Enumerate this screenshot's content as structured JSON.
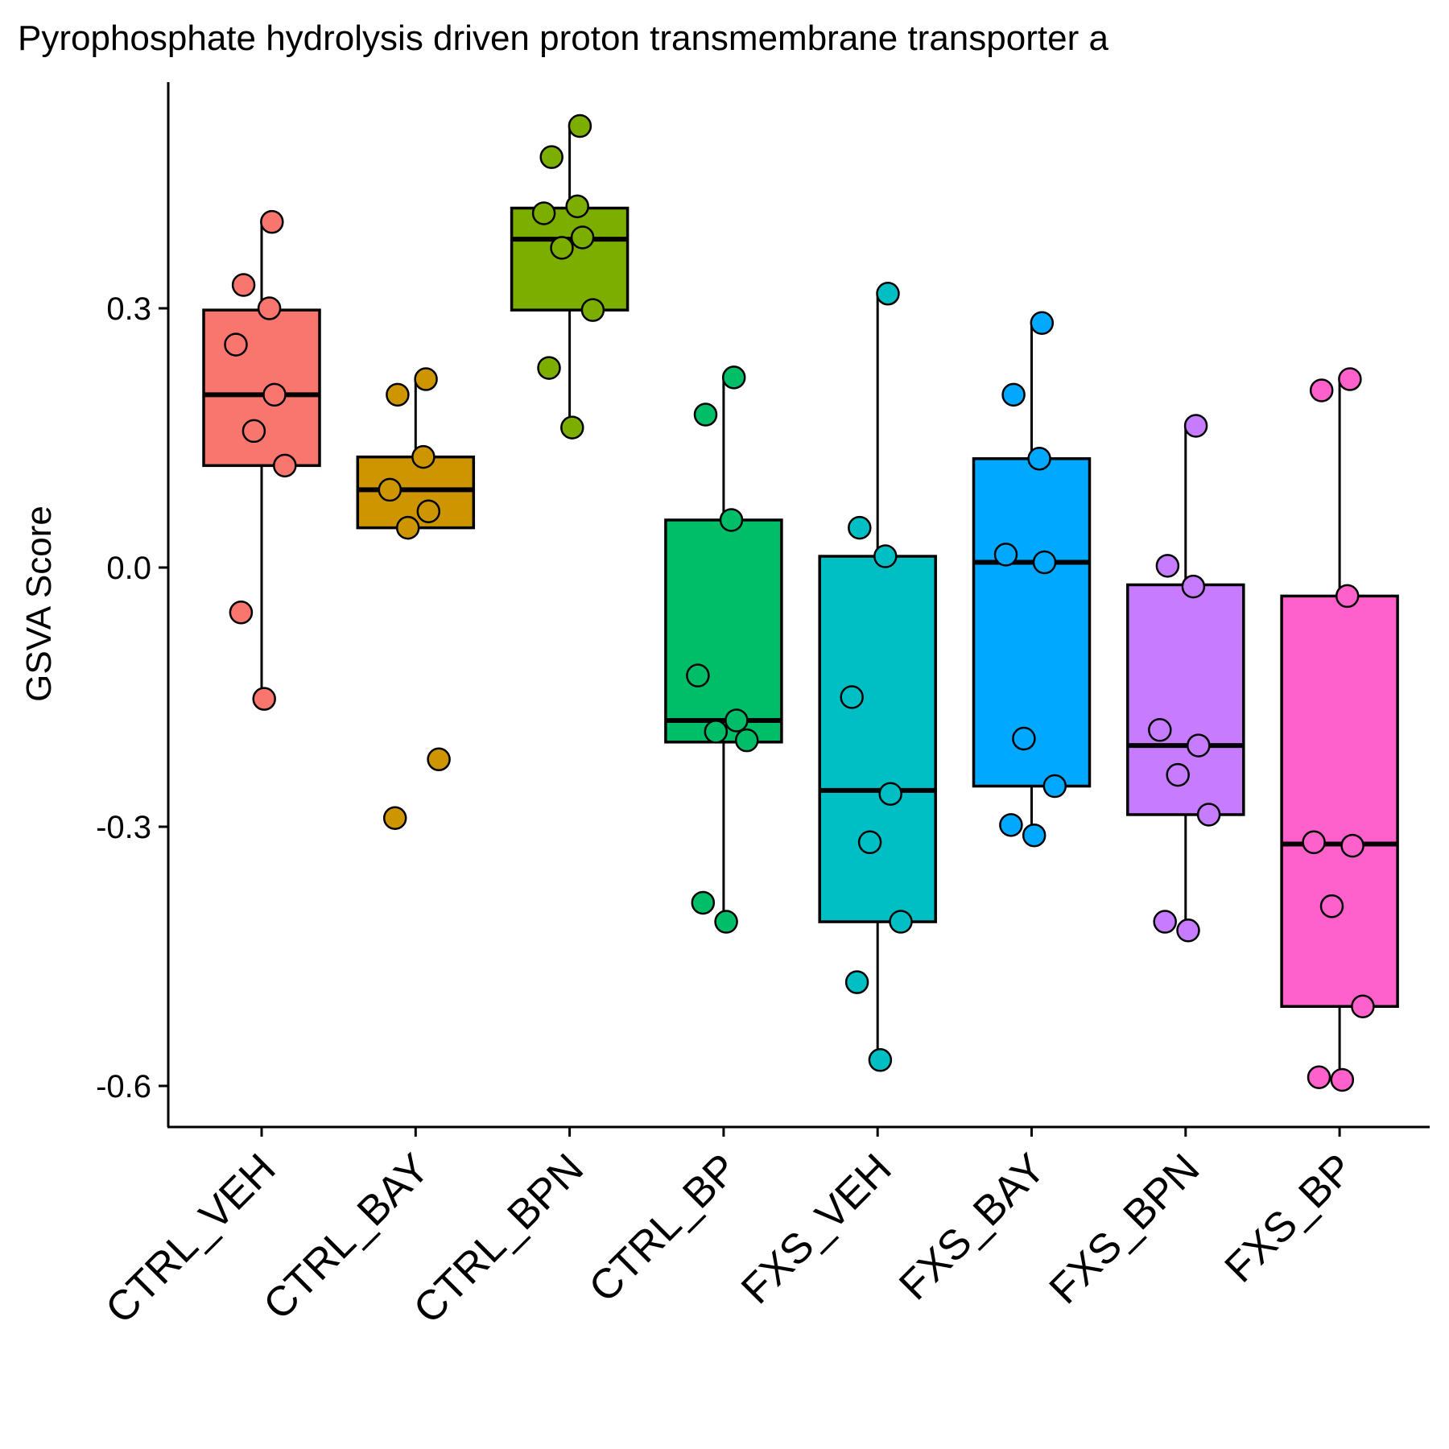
{
  "chart_data": {
    "type": "box",
    "title": "Pyrophosphate hydrolysis driven proton transmembrane transporter a",
    "xlabel": "",
    "ylabel": "GSVA Score",
    "ylim": [
      -0.65,
      0.56
    ],
    "yticks": [
      {
        "value": 0.3,
        "label": "0.3"
      },
      {
        "value": 0.0,
        "label": "0.0"
      },
      {
        "value": -0.3,
        "label": "-0.3"
      },
      {
        "value": -0.6,
        "label": "-0.6"
      }
    ],
    "grid": false,
    "legend": "none",
    "categories": [
      "CTRL_VEH",
      "CTRL_BAY",
      "CTRL_BPN",
      "CTRL_BP",
      "FXS_VEH",
      "FXS_BAY",
      "FXS_BPN",
      "FXS_BP"
    ],
    "colors": [
      "#F8766D",
      "#CD9600",
      "#7CAE00",
      "#00BE67",
      "#00BFC4",
      "#00A9FF",
      "#C77CFF",
      "#FF61CC"
    ],
    "boxes": [
      {
        "whisker_low": -0.152,
        "q1": 0.118,
        "median": 0.2,
        "q3": 0.298,
        "whisker_high": 0.4
      },
      {
        "whisker_low": 0.046,
        "q1": 0.046,
        "median": 0.09,
        "q3": 0.128,
        "whisker_high": 0.218
      },
      {
        "whisker_low": 0.162,
        "q1": 0.298,
        "median": 0.38,
        "q3": 0.416,
        "whisker_high": 0.511
      },
      {
        "whisker_low": -0.41,
        "q1": -0.202,
        "median": -0.177,
        "q3": 0.055,
        "whisker_high": 0.22
      },
      {
        "whisker_low": -0.57,
        "q1": -0.41,
        "median": -0.258,
        "q3": 0.013,
        "whisker_high": 0.317
      },
      {
        "whisker_low": -0.31,
        "q1": -0.253,
        "median": 0.006,
        "q3": 0.126,
        "whisker_high": 0.283
      },
      {
        "whisker_low": -0.42,
        "q1": -0.286,
        "median": -0.206,
        "q3": -0.02,
        "whisker_high": 0.164
      },
      {
        "whisker_low": -0.593,
        "q1": -0.508,
        "median": -0.32,
        "q3": -0.033,
        "whisker_high": 0.218
      }
    ],
    "points": [
      [
        0.4,
        0.327,
        0.3,
        0.258,
        0.2,
        0.158,
        0.118,
        -0.052,
        -0.152
      ],
      [
        0.218,
        0.2,
        0.128,
        0.09,
        0.065,
        0.046,
        -0.222,
        -0.29
      ],
      [
        0.511,
        0.475,
        0.418,
        0.41,
        0.382,
        0.37,
        0.298,
        0.231,
        0.162
      ],
      [
        0.22,
        0.177,
        0.055,
        -0.125,
        -0.177,
        -0.19,
        -0.2,
        -0.388,
        -0.41
      ],
      [
        0.317,
        0.046,
        0.013,
        -0.15,
        -0.262,
        -0.318,
        -0.41,
        -0.48,
        -0.57
      ],
      [
        0.283,
        0.2,
        0.126,
        0.015,
        0.006,
        -0.198,
        -0.253,
        -0.298,
        -0.31
      ],
      [
        0.164,
        0.002,
        -0.022,
        -0.188,
        -0.206,
        -0.24,
        -0.286,
        -0.41,
        -0.42
      ],
      [
        0.218,
        0.205,
        -0.033,
        -0.318,
        -0.322,
        -0.392,
        -0.508,
        -0.59,
        -0.593
      ]
    ]
  }
}
